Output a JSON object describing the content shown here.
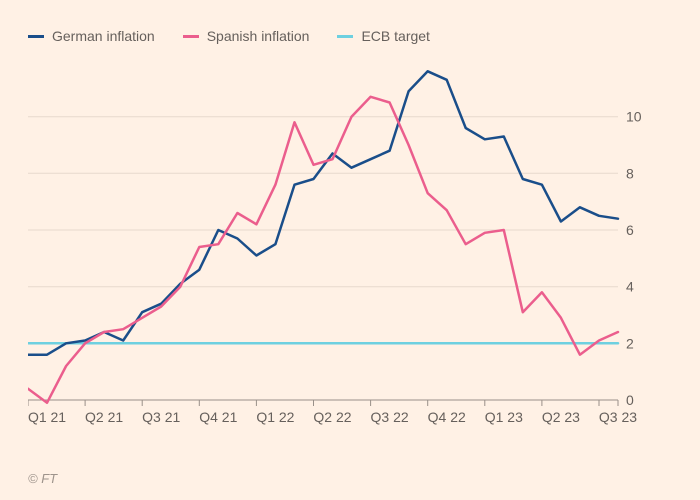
{
  "chart": {
    "type": "line",
    "background_color": "#fff1e5",
    "grid_color": "#e7d9cd",
    "baseline_color": "#999089",
    "tick_fontsize": 14,
    "tick_color": "#66605c",
    "line_width": 2.5,
    "ylim": [
      0,
      12
    ],
    "ytick_step": 2,
    "yticks": [
      0,
      2,
      4,
      6,
      8,
      10
    ],
    "x_categories": [
      "Q1 21",
      "Q2 21",
      "Q3 21",
      "Q4 21",
      "Q1 22",
      "Q2 22",
      "Q3 22",
      "Q4 22",
      "Q1 23",
      "Q2 23",
      "Q3 23"
    ],
    "x_category_width": 3,
    "months": [
      "2021-01",
      "2021-02",
      "2021-03",
      "2021-04",
      "2021-05",
      "2021-06",
      "2021-07",
      "2021-08",
      "2021-09",
      "2021-10",
      "2021-11",
      "2021-12",
      "2022-01",
      "2022-02",
      "2022-03",
      "2022-04",
      "2022-05",
      "2022-06",
      "2022-07",
      "2022-08",
      "2022-09",
      "2022-10",
      "2022-11",
      "2022-12",
      "2023-01",
      "2023-02",
      "2023-03",
      "2023-04",
      "2023-05",
      "2023-06",
      "2023-07",
      "2023-08"
    ],
    "series": [
      {
        "key": "german",
        "label": "German inflation",
        "color": "#1a4e8a",
        "values": [
          1.6,
          1.6,
          2.0,
          2.1,
          2.4,
          2.1,
          3.1,
          3.4,
          4.1,
          4.6,
          6.0,
          5.7,
          5.1,
          5.5,
          7.6,
          7.8,
          8.7,
          8.2,
          8.5,
          8.8,
          10.9,
          11.6,
          11.3,
          9.6,
          9.2,
          9.3,
          7.8,
          7.6,
          6.3,
          6.8,
          6.5,
          6.4
        ]
      },
      {
        "key": "spanish",
        "label": "Spanish inflation",
        "color": "#eb5e8d",
        "values": [
          0.4,
          -0.1,
          1.2,
          2.0,
          2.4,
          2.5,
          2.9,
          3.3,
          4.0,
          5.4,
          5.5,
          6.6,
          6.2,
          7.6,
          9.8,
          8.3,
          8.5,
          10.0,
          10.7,
          10.5,
          9.0,
          7.3,
          6.7,
          5.5,
          5.9,
          6.0,
          3.1,
          3.8,
          2.9,
          1.6,
          2.1,
          2.4
        ]
      },
      {
        "key": "ecb",
        "label": "ECB target",
        "color": "#6ed0e0",
        "values": [
          2,
          2,
          2,
          2,
          2,
          2,
          2,
          2,
          2,
          2,
          2,
          2,
          2,
          2,
          2,
          2,
          2,
          2,
          2,
          2,
          2,
          2,
          2,
          2,
          2,
          2,
          2,
          2,
          2,
          2,
          2,
          2
        ]
      }
    ],
    "legend": {
      "fontsize": 14,
      "color": "#66605c"
    },
    "source_label": "© FT"
  }
}
